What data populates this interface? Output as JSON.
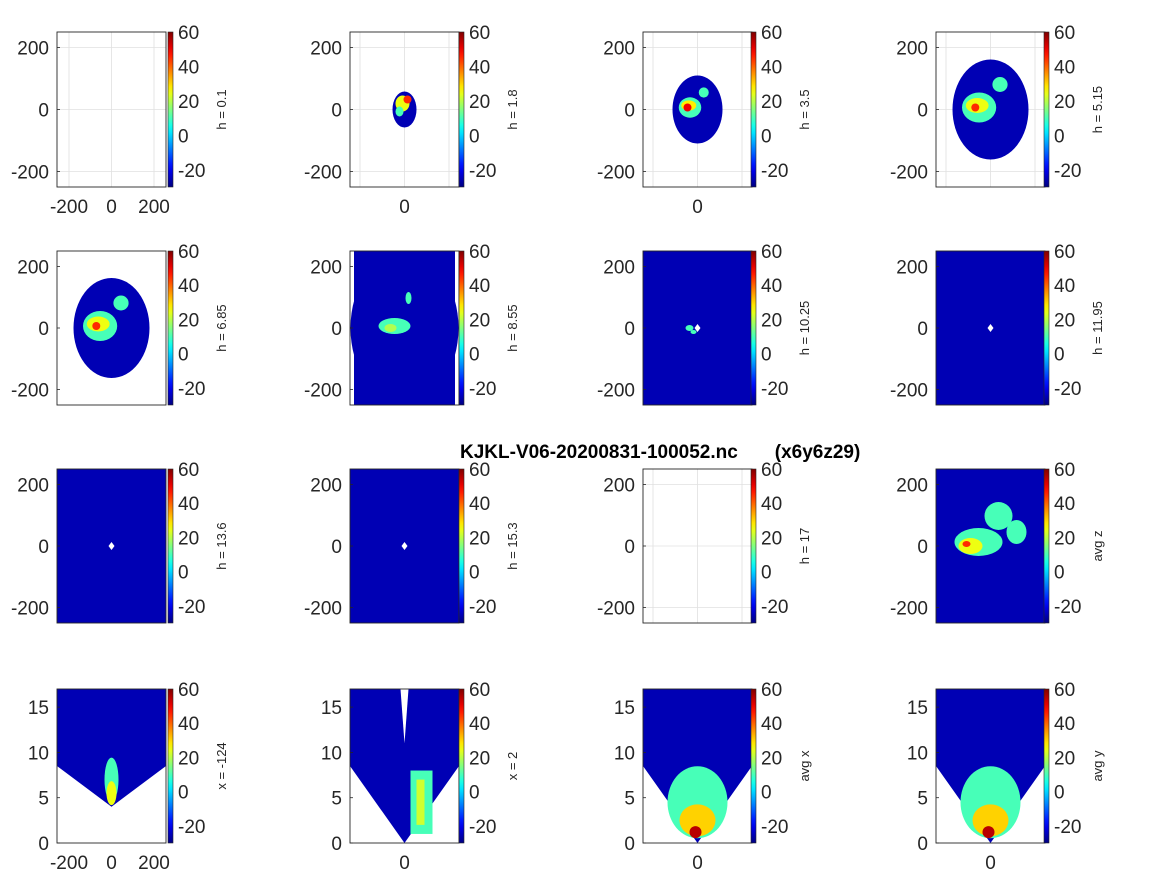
{
  "figure": {
    "title": "KJKL-V06-20200831-100052.nc       (x6y6z29)",
    "colormap": "jet",
    "background": "#ffffff",
    "fill_color": "#0000b4"
  },
  "chart_data": [
    {
      "type": "heatmap",
      "view": "horizontal slice",
      "ylabel": "h = 0.1",
      "xticks": [
        "-200",
        "0",
        "200"
      ],
      "yticks": [
        "200",
        "0",
        "-200"
      ],
      "ylim": [
        -250,
        250
      ],
      "clim": [
        -30,
        60
      ],
      "cbar_ticks": [
        "60",
        "40",
        "20",
        "0",
        "-20"
      ],
      "grid": true,
      "coverage": "none",
      "max_value": 0
    },
    {
      "type": "heatmap",
      "view": "horizontal slice",
      "ylabel": "h = 1.8",
      "xticks": [
        "0"
      ],
      "yticks": [
        "200",
        "0",
        "-200"
      ],
      "ylim": [
        -250,
        250
      ],
      "clim": [
        -30,
        60
      ],
      "cbar_ticks": [
        "60",
        "40",
        "20",
        "0",
        "-20"
      ],
      "grid": true,
      "coverage": "small ellipse",
      "max_value": 45
    },
    {
      "type": "heatmap",
      "view": "horizontal slice",
      "ylabel": "h = 3.5",
      "xticks": [
        "0"
      ],
      "yticks": [
        "200",
        "0",
        "-200"
      ],
      "ylim": [
        -250,
        250
      ],
      "clim": [
        -30,
        60
      ],
      "cbar_ticks": [
        "60",
        "40",
        "20",
        "0",
        "-20"
      ],
      "grid": true,
      "coverage": "ellipse",
      "max_value": 50
    },
    {
      "type": "heatmap",
      "view": "horizontal slice",
      "ylabel": "h = 5.15",
      "xticks": [],
      "yticks": [
        "200",
        "0",
        "-200"
      ],
      "ylim": [
        -250,
        250
      ],
      "clim": [
        -30,
        60
      ],
      "cbar_ticks": [
        "60",
        "40",
        "20",
        "0",
        "-20"
      ],
      "grid": true,
      "coverage": "ellipse",
      "max_value": 45
    },
    {
      "type": "heatmap",
      "view": "horizontal slice",
      "ylabel": "h = 6.85",
      "xticks": [],
      "yticks": [
        "200",
        "0",
        "-200"
      ],
      "ylim": [
        -250,
        250
      ],
      "clim": [
        -30,
        60
      ],
      "cbar_ticks": [
        "60",
        "40",
        "20",
        "0",
        "-20"
      ],
      "grid": false,
      "coverage": "ellipse",
      "max_value": 45
    },
    {
      "type": "heatmap",
      "view": "horizontal slice",
      "ylabel": "h = 8.55",
      "xticks": [],
      "yticks": [
        "200",
        "0",
        "-200"
      ],
      "ylim": [
        -250,
        250
      ],
      "clim": [
        -30,
        60
      ],
      "cbar_ticks": [
        "60",
        "40",
        "20",
        "0",
        "-20"
      ],
      "grid": false,
      "coverage": "near full",
      "max_value": 35
    },
    {
      "type": "heatmap",
      "view": "horizontal slice",
      "ylabel": "h = 10.25",
      "xticks": [],
      "yticks": [
        "200",
        "0",
        "-200"
      ],
      "ylim": [
        -250,
        250
      ],
      "clim": [
        -30,
        60
      ],
      "cbar_ticks": [
        "60",
        "40",
        "20",
        "0",
        "-20"
      ],
      "grid": false,
      "coverage": "full",
      "max_value": 25
    },
    {
      "type": "heatmap",
      "view": "horizontal slice",
      "ylabel": "h = 11.95",
      "xticks": [],
      "yticks": [
        "200",
        "0",
        "-200"
      ],
      "ylim": [
        -250,
        250
      ],
      "clim": [
        -30,
        60
      ],
      "cbar_ticks": [
        "60",
        "40",
        "20",
        "0",
        "-20"
      ],
      "grid": false,
      "coverage": "full",
      "max_value": 0
    },
    {
      "type": "heatmap",
      "view": "horizontal slice",
      "ylabel": "h = 13.6",
      "xticks": [],
      "yticks": [
        "200",
        "0",
        "-200"
      ],
      "ylim": [
        -250,
        250
      ],
      "clim": [
        -30,
        60
      ],
      "cbar_ticks": [
        "60",
        "40",
        "20",
        "0",
        "-20"
      ],
      "grid": false,
      "coverage": "full",
      "max_value": 0
    },
    {
      "type": "heatmap",
      "view": "horizontal slice",
      "ylabel": "h = 15.3",
      "xticks": [],
      "yticks": [
        "200",
        "0",
        "-200"
      ],
      "ylim": [
        -250,
        250
      ],
      "clim": [
        -30,
        60
      ],
      "cbar_ticks": [
        "60",
        "40",
        "20",
        "0",
        "-20"
      ],
      "grid": false,
      "coverage": "full",
      "max_value": 0
    },
    {
      "type": "heatmap",
      "view": "horizontal slice",
      "ylabel": "h = 17",
      "xticks": [],
      "yticks": [
        "200",
        "0",
        "-200"
      ],
      "ylim": [
        -250,
        250
      ],
      "clim": [
        -30,
        60
      ],
      "cbar_ticks": [
        "60",
        "40",
        "20",
        "0",
        "-20"
      ],
      "grid": true,
      "coverage": "none",
      "max_value": 0
    },
    {
      "type": "heatmap",
      "view": "vertical average",
      "ylabel": "avg z",
      "xticks": [],
      "yticks": [
        "200",
        "0",
        "-200"
      ],
      "ylim": [
        -250,
        250
      ],
      "clim": [
        -30,
        60
      ],
      "cbar_ticks": [
        "60",
        "40",
        "20",
        "0",
        "-20"
      ],
      "grid": false,
      "coverage": "full rectangle",
      "max_value": 45
    },
    {
      "type": "heatmap",
      "view": "vertical cross-section",
      "ylabel": "x = -124",
      "xticks": [
        "-200",
        "0",
        "200"
      ],
      "yticks": [
        "15",
        "10",
        "5",
        "0"
      ],
      "ylim": [
        0,
        17
      ],
      "clim": [
        -30,
        60
      ],
      "cbar_ticks": [
        "60",
        "40",
        "20",
        "0",
        "-20"
      ],
      "grid": false,
      "coverage": "cone",
      "max_value": 45
    },
    {
      "type": "heatmap",
      "view": "vertical cross-section",
      "ylabel": "x = 2",
      "xticks": [
        "0"
      ],
      "yticks": [
        "15",
        "10",
        "5",
        "0"
      ],
      "ylim": [
        0,
        17
      ],
      "clim": [
        -30,
        60
      ],
      "cbar_ticks": [
        "60",
        "40",
        "20",
        "0",
        "-20"
      ],
      "grid": false,
      "coverage": "cone with gaps",
      "max_value": 40
    },
    {
      "type": "heatmap",
      "view": "vertical average",
      "ylabel": "avg x",
      "xticks": [
        "0"
      ],
      "yticks": [
        "15",
        "10",
        "5",
        "0"
      ],
      "ylim": [
        0,
        17
      ],
      "clim": [
        -30,
        60
      ],
      "cbar_ticks": [
        "60",
        "40",
        "20",
        "0",
        "-20"
      ],
      "grid": false,
      "coverage": "cone",
      "max_value": 55
    },
    {
      "type": "heatmap",
      "view": "vertical average",
      "ylabel": "avg y",
      "xticks": [
        "0"
      ],
      "yticks": [
        "15",
        "10",
        "5",
        "0"
      ],
      "ylim": [
        0,
        17
      ],
      "clim": [
        -30,
        60
      ],
      "cbar_ticks": [
        "60",
        "40",
        "20",
        "0",
        "-20"
      ],
      "grid": false,
      "coverage": "cone",
      "max_value": 55
    }
  ]
}
